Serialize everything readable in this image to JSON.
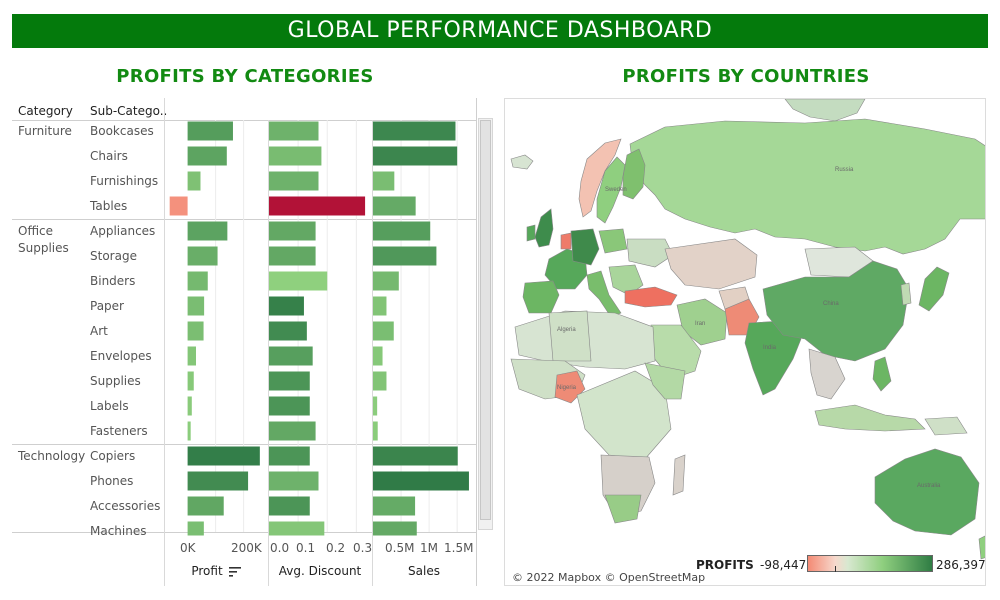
{
  "header": {
    "title": "GLOBAL PERFORMANCE DASHBOARD"
  },
  "left_panel": {
    "title": "PROFITS BY CATEGORIES",
    "col_category": "Category",
    "col_subcategory": "Sub-Catego..",
    "profit_ticks": [
      "0K",
      "200K"
    ],
    "discount_ticks": [
      "0.0",
      "0.1",
      "0.2",
      "0.3"
    ],
    "sales_ticks": [
      "0.5M",
      "1M",
      "1.5M"
    ],
    "measure_profit": "Profit",
    "measure_discount": "Avg. Discount",
    "measure_sales": "Sales"
  },
  "right_panel": {
    "title": "PROFITS BY COUNTRIES",
    "map_credit": "© 2022 Mapbox © OpenStreetMap",
    "legend_title": "PROFITS",
    "legend_min": "-98,447",
    "legend_max": "286,397",
    "labels": {
      "sweden": "Sweden",
      "russia": "Russia",
      "algeria": "Algeria",
      "nigeria": "Nigeria",
      "iran": "Iran",
      "india": "India",
      "china": "China",
      "australia": "Australia"
    }
  },
  "colors": {
    "banner": "#047a0c",
    "title": "#128a12",
    "dark_green": "#2d7d46",
    "mid_green": "#56a85a",
    "light_green": "#86c977",
    "salmon": "#f4917d",
    "crimson": "#b21237"
  },
  "chart_data": {
    "type": "bar",
    "categories": [
      "Furniture",
      "Office Supplies",
      "Technology"
    ],
    "rows": [
      {
        "category": "Furniture",
        "subcategory": "Bookcases",
        "profit": 162000,
        "discount": 0.17,
        "sales": 1470000
      },
      {
        "category": "Furniture",
        "subcategory": "Chairs",
        "profit": 140000,
        "discount": 0.18,
        "sales": 1500000
      },
      {
        "category": "Furniture",
        "subcategory": "Furnishings",
        "profit": 46000,
        "discount": 0.17,
        "sales": 380000
      },
      {
        "category": "Furniture",
        "subcategory": "Tables",
        "profit": -64000,
        "discount": 0.33,
        "sales": 760000
      },
      {
        "category": "Office Supplies",
        "subcategory": "Appliances",
        "profit": 142000,
        "discount": 0.16,
        "sales": 1020000
      },
      {
        "category": "Office Supplies",
        "subcategory": "Storage",
        "profit": 107000,
        "discount": 0.16,
        "sales": 1130000
      },
      {
        "category": "Office Supplies",
        "subcategory": "Binders",
        "profit": 72000,
        "discount": 0.2,
        "sales": 460000
      },
      {
        "category": "Office Supplies",
        "subcategory": "Paper",
        "profit": 59000,
        "discount": 0.12,
        "sales": 240000
      },
      {
        "category": "Office Supplies",
        "subcategory": "Art",
        "profit": 57000,
        "discount": 0.13,
        "sales": 370000
      },
      {
        "category": "Office Supplies",
        "subcategory": "Envelopes",
        "profit": 30000,
        "discount": 0.15,
        "sales": 170000
      },
      {
        "category": "Office Supplies",
        "subcategory": "Supplies",
        "profit": 22000,
        "discount": 0.14,
        "sales": 240000
      },
      {
        "category": "Office Supplies",
        "subcategory": "Labels",
        "profit": 15000,
        "discount": 0.14,
        "sales": 74000
      },
      {
        "category": "Office Supplies",
        "subcategory": "Fasteners",
        "profit": 11000,
        "discount": 0.16,
        "sales": 84000
      },
      {
        "category": "Technology",
        "subcategory": "Copiers",
        "profit": 258000,
        "discount": 0.14,
        "sales": 1510000
      },
      {
        "category": "Technology",
        "subcategory": "Phones",
        "profit": 216000,
        "discount": 0.17,
        "sales": 1710000
      },
      {
        "category": "Technology",
        "subcategory": "Accessories",
        "profit": 129000,
        "discount": 0.14,
        "sales": 750000
      },
      {
        "category": "Technology",
        "subcategory": "Machines",
        "profit": 58000,
        "discount": 0.19,
        "sales": 780000
      }
    ],
    "xlim_profit": [
      -70000,
      280000
    ],
    "xlim_discount": [
      0,
      0.34
    ],
    "xlim_sales": [
      0,
      1800000
    ],
    "legend_range": [
      -98447,
      286397
    ]
  }
}
